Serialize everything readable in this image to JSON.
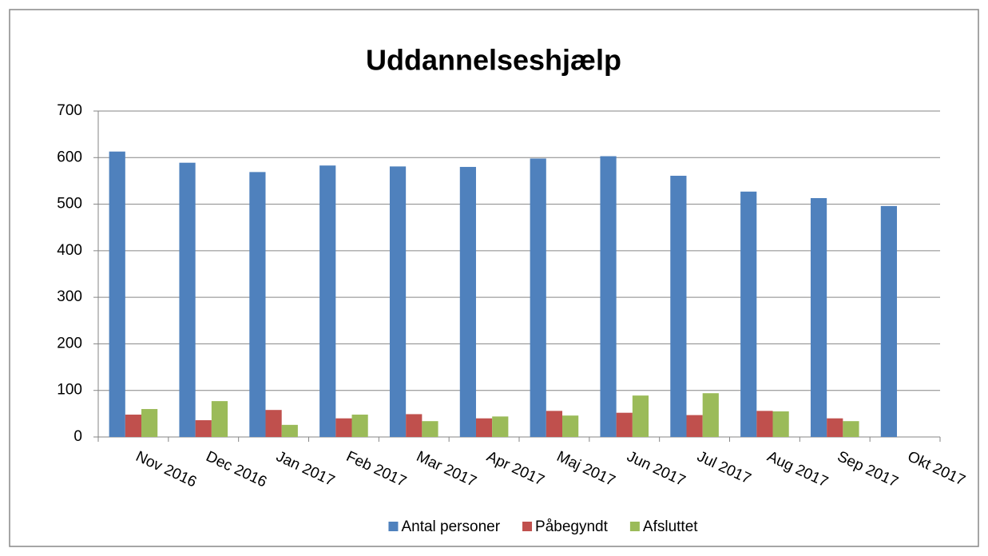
{
  "chart_data": {
    "type": "bar",
    "title": "Uddannelseshjælp",
    "categories": [
      "Nov 2016",
      "Dec 2016",
      "Jan 2017",
      "Feb 2017",
      "Mar 2017",
      "Apr 2017",
      "Maj 2017",
      "Jun 2017",
      "Jul 2017",
      "Aug 2017",
      "Sep 2017",
      "Okt 2017"
    ],
    "series": [
      {
        "name": "Antal personer",
        "color": "#4f81bd",
        "values": [
          613,
          589,
          569,
          583,
          581,
          580,
          598,
          603,
          561,
          527,
          513,
          496
        ]
      },
      {
        "name": "Påbegyndt",
        "color": "#c0504d",
        "values": [
          48,
          36,
          58,
          40,
          49,
          40,
          56,
          52,
          47,
          56,
          40,
          null
        ]
      },
      {
        "name": "Afsluttet",
        "color": "#9bbb59",
        "values": [
          60,
          77,
          26,
          48,
          34,
          44,
          46,
          89,
          94,
          55,
          34,
          null
        ]
      }
    ],
    "ylim": [
      0,
      700
    ],
    "yticks": [
      0,
      100,
      200,
      300,
      400,
      500,
      600,
      700
    ],
    "grid": true,
    "legend": "bottom"
  }
}
